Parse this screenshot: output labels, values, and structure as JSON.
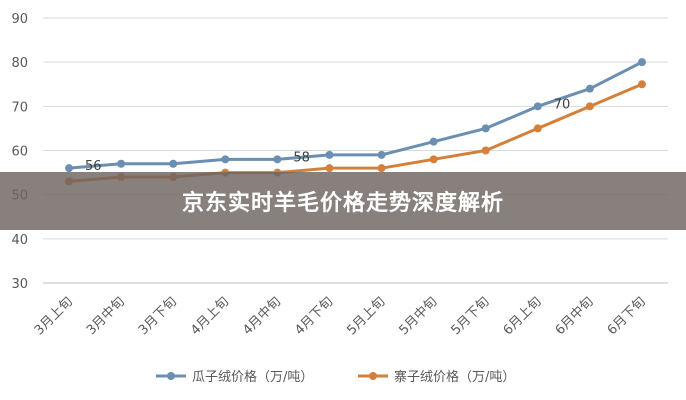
{
  "chart_data": {
    "type": "line",
    "categories": [
      "3月上旬",
      "3月中旬",
      "3月下旬",
      "4月上旬",
      "4月中旬",
      "4月下旬",
      "5月上旬",
      "5月中旬",
      "5月下旬",
      "6月上旬",
      "6月中旬",
      "6月下旬"
    ],
    "ylim": [
      30,
      90
    ],
    "yticks": [
      30,
      40,
      50,
      60,
      70,
      80,
      90
    ],
    "grid": true,
    "legend": "bottom",
    "series": [
      {
        "name": "瓜子绒价格（万/吨）",
        "color": "#6b8fb0",
        "values": [
          56,
          57,
          57,
          58,
          58,
          59,
          59,
          62,
          65,
          70,
          74,
          80
        ]
      },
      {
        "name": "寨子绒价格（万/吨）",
        "color": "#d4803a",
        "values": [
          53,
          54,
          54,
          55,
          55,
          56,
          56,
          58,
          60,
          65,
          70,
          75
        ]
      }
    ],
    "annotations": [
      {
        "series": 0,
        "index": 0,
        "text": "56"
      },
      {
        "series": 0,
        "index": 4,
        "text": "58"
      },
      {
        "series": 0,
        "index": 9,
        "text": "70"
      }
    ]
  },
  "banner": {
    "title": "京东实时羊毛价格走势深度解析"
  }
}
